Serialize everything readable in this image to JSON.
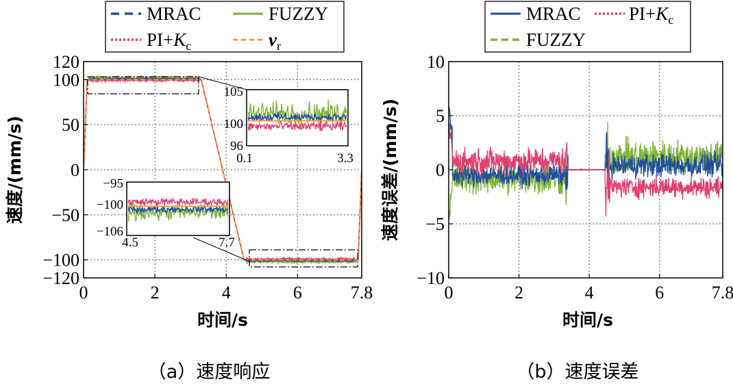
{
  "chart_data": [
    {
      "type": "line",
      "caption": "（a）速度响应",
      "xlabel": "时间/s",
      "ylabel": "速度/(mm/s)",
      "xlim": [
        0,
        7.8
      ],
      "ylim": [
        -120,
        120
      ],
      "xticks": [
        "0",
        "2",
        "4",
        "6",
        "7.8"
      ],
      "yticks": [
        "120",
        "100",
        "50",
        "0",
        "−50",
        "−100",
        "−120"
      ],
      "grid": true,
      "legend_position": "top",
      "series": [
        {
          "name": "MRAC",
          "color": "#1f4e9c",
          "style": "dashed"
        },
        {
          "name": "FUZZY",
          "color": "#7fb337",
          "style": "solid"
        },
        {
          "name": "PI+K_c",
          "label_main": "PI+",
          "label_sym": "K",
          "label_sub": "c",
          "color": "#e0406e",
          "style": "dotted"
        },
        {
          "name": "v_r",
          "label_sym": "v",
          "label_sub": "r",
          "color": "#f39a3a",
          "style": "dashed"
        }
      ],
      "reference_profile": {
        "x": [
          0,
          0.1,
          3.3,
          4.5,
          7.7,
          7.8
        ],
        "y": [
          0,
          100,
          100,
          -100,
          -100,
          0
        ]
      },
      "insets": [
        {
          "name": "upper",
          "xlim": [
            0.1,
            3.3
          ],
          "ylim": [
            96,
            105
          ],
          "xticks": [
            "0.1",
            "3.3"
          ],
          "yticks": [
            "105",
            "100",
            "96"
          ]
        },
        {
          "name": "lower",
          "xlim": [
            4.5,
            7.7
          ],
          "ylim": [
            -106,
            -95
          ],
          "xticks": [
            "4.5",
            "7.7"
          ],
          "yticks": [
            "−95",
            "−100",
            "−106"
          ]
        }
      ]
    },
    {
      "type": "line",
      "caption": "（b）速度误差",
      "xlabel": "时间/s",
      "ylabel": "速度误差/(mm/s)",
      "xlim": [
        0,
        7.8
      ],
      "ylim": [
        -10,
        10
      ],
      "xticks": [
        "0",
        "2",
        "4",
        "6",
        "7.8"
      ],
      "yticks": [
        "10",
        "5",
        "0",
        "−5",
        "−10"
      ],
      "grid": true,
      "legend_position": "top",
      "series": [
        {
          "name": "MRAC",
          "color": "#1f4e9c",
          "style": "solid"
        },
        {
          "name": "PI+K_c",
          "label_main": "PI+",
          "label_sym": "K",
          "label_sub": "c",
          "color": "#e0406e",
          "style": "dotted"
        },
        {
          "name": "FUZZY",
          "color": "#7fb337",
          "style": "dashed"
        }
      ]
    }
  ]
}
